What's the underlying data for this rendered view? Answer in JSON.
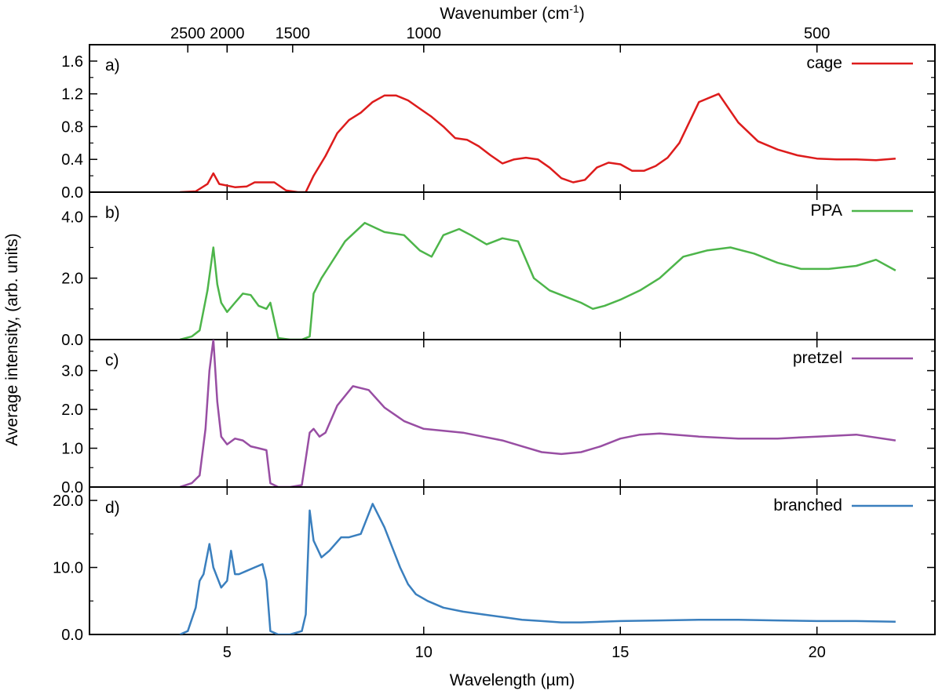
{
  "chart_data": {
    "type": "line",
    "xlabel": "Wavelength (µm)",
    "ylabel": "Average intensity, (arb. units)",
    "top_axis_label": "Wavenumber (cm",
    "top_axis_label_sup": "-1",
    "top_axis_label_close": ")",
    "xlim": [
      1.5,
      23
    ],
    "x_ticks": [
      5,
      10,
      15,
      20
    ],
    "x_tick_labels": [
      "5",
      "10",
      "15",
      "20"
    ],
    "top_ticks": [
      2500,
      2000,
      1500,
      1000,
      500
    ],
    "top_tick_labels": [
      "2500",
      "2000",
      "1500",
      "1000",
      "500"
    ],
    "panels": [
      {
        "panel_label": "a)",
        "legend": "cage",
        "color": "#dd1c1c",
        "ylim": [
          0,
          1.8
        ],
        "y_ticks": [
          0.0,
          0.4,
          0.8,
          1.2,
          1.6
        ],
        "y_tick_labels": [
          "0.0",
          "0.4",
          "0.8",
          "1.2",
          "1.6"
        ],
        "x": [
          3.8,
          4.2,
          4.5,
          4.65,
          4.8,
          5.2,
          5.5,
          5.7,
          5.9,
          6.2,
          6.5,
          6.8,
          7.0,
          7.2,
          7.5,
          7.8,
          8.1,
          8.4,
          8.7,
          9.0,
          9.3,
          9.6,
          9.9,
          10.2,
          10.5,
          10.8,
          11.1,
          11.4,
          11.7,
          12.0,
          12.3,
          12.6,
          12.9,
          13.2,
          13.5,
          13.8,
          14.1,
          14.4,
          14.7,
          15.0,
          15.3,
          15.6,
          15.9,
          16.2,
          16.5,
          17.0,
          17.5,
          18.0,
          18.5,
          19.0,
          19.5,
          20.0,
          20.5,
          21.0,
          21.5,
          22.0
        ],
        "y": [
          0.0,
          0.01,
          0.1,
          0.23,
          0.1,
          0.06,
          0.07,
          0.12,
          0.12,
          0.12,
          0.02,
          0.0,
          0.0,
          0.2,
          0.44,
          0.72,
          0.88,
          0.97,
          1.1,
          1.18,
          1.18,
          1.12,
          1.02,
          0.92,
          0.8,
          0.66,
          0.64,
          0.56,
          0.45,
          0.35,
          0.4,
          0.42,
          0.4,
          0.3,
          0.17,
          0.12,
          0.15,
          0.3,
          0.36,
          0.34,
          0.26,
          0.26,
          0.32,
          0.42,
          0.6,
          1.1,
          1.2,
          0.85,
          0.62,
          0.52,
          0.45,
          0.41,
          0.4,
          0.4,
          0.39,
          0.41
        ]
      },
      {
        "panel_label": "b)",
        "legend": "PPA",
        "color": "#4db54a",
        "ylim": [
          0,
          4.8
        ],
        "y_ticks": [
          0.0,
          2.0,
          4.0
        ],
        "y_tick_labels": [
          "0.0",
          "2.0",
          "4.0"
        ],
        "x": [
          3.8,
          4.1,
          4.3,
          4.5,
          4.65,
          4.75,
          4.85,
          5.0,
          5.2,
          5.4,
          5.6,
          5.8,
          6.0,
          6.1,
          6.3,
          6.6,
          6.9,
          7.1,
          7.2,
          7.4,
          7.6,
          8.0,
          8.5,
          9.0,
          9.5,
          9.9,
          10.2,
          10.5,
          10.9,
          11.2,
          11.6,
          12.0,
          12.4,
          12.8,
          13.2,
          13.6,
          14.0,
          14.3,
          14.6,
          15.0,
          15.5,
          16.0,
          16.6,
          17.2,
          17.8,
          18.4,
          19.0,
          19.6,
          20.3,
          21.0,
          21.5,
          22.0
        ],
        "y": [
          0.0,
          0.1,
          0.3,
          1.6,
          3.0,
          1.8,
          1.2,
          0.9,
          1.2,
          1.5,
          1.45,
          1.1,
          1.0,
          1.2,
          0.05,
          0.0,
          0.0,
          0.1,
          1.5,
          2.0,
          2.4,
          3.2,
          3.8,
          3.5,
          3.4,
          2.9,
          2.7,
          3.4,
          3.6,
          3.4,
          3.1,
          3.3,
          3.2,
          2.0,
          1.6,
          1.4,
          1.2,
          1.0,
          1.1,
          1.3,
          1.6,
          2.0,
          2.7,
          2.9,
          3.0,
          2.8,
          2.5,
          2.3,
          2.3,
          2.4,
          2.6,
          2.25
        ]
      },
      {
        "panel_label": "c)",
        "legend": "pretzel",
        "color": "#984ea3",
        "ylim": [
          0,
          3.8
        ],
        "y_ticks": [
          0.0,
          1.0,
          2.0,
          3.0
        ],
        "y_tick_labels": [
          "0.0",
          "1.0",
          "2.0",
          "3.0"
        ],
        "x": [
          3.8,
          4.1,
          4.3,
          4.45,
          4.55,
          4.65,
          4.75,
          4.85,
          5.0,
          5.2,
          5.4,
          5.6,
          5.8,
          6.0,
          6.1,
          6.3,
          6.6,
          6.9,
          7.1,
          7.2,
          7.35,
          7.5,
          7.8,
          8.2,
          8.6,
          9.0,
          9.5,
          10.0,
          10.5,
          11.0,
          11.5,
          12.0,
          12.5,
          13.0,
          13.5,
          14.0,
          14.5,
          15.0,
          15.5,
          16.0,
          17.0,
          18.0,
          19.0,
          20.0,
          21.0,
          22.0
        ],
        "y": [
          0.0,
          0.1,
          0.3,
          1.5,
          3.0,
          3.8,
          2.2,
          1.3,
          1.1,
          1.25,
          1.2,
          1.05,
          1.0,
          0.95,
          0.1,
          0.0,
          0.0,
          0.05,
          1.4,
          1.5,
          1.3,
          1.4,
          2.1,
          2.6,
          2.5,
          2.05,
          1.7,
          1.5,
          1.45,
          1.4,
          1.3,
          1.2,
          1.05,
          0.9,
          0.85,
          0.9,
          1.05,
          1.25,
          1.35,
          1.38,
          1.3,
          1.25,
          1.25,
          1.3,
          1.35,
          1.2
        ]
      },
      {
        "panel_label": "d)",
        "legend": "branched",
        "color": "#3a7fbe",
        "ylim": [
          0,
          22
        ],
        "y_ticks": [
          0.0,
          10.0,
          20.0
        ],
        "y_tick_labels": [
          "0.0",
          "10.0",
          "20.0"
        ],
        "x": [
          3.8,
          4.0,
          4.2,
          4.3,
          4.4,
          4.55,
          4.65,
          4.75,
          4.85,
          5.0,
          5.1,
          5.2,
          5.3,
          5.5,
          5.7,
          5.9,
          6.0,
          6.1,
          6.3,
          6.6,
          6.9,
          7.0,
          7.1,
          7.2,
          7.4,
          7.6,
          7.9,
          8.1,
          8.4,
          8.7,
          9.0,
          9.2,
          9.4,
          9.6,
          9.8,
          10.1,
          10.5,
          11.0,
          11.5,
          12.0,
          12.5,
          13.0,
          13.5,
          14.0,
          14.5,
          15.0,
          16.0,
          17.0,
          18.0,
          19.0,
          20.0,
          21.0,
          22.0
        ],
        "y": [
          0.0,
          0.5,
          4.0,
          8.0,
          9.0,
          13.5,
          10.0,
          8.5,
          7.0,
          8.0,
          12.5,
          9.0,
          9.0,
          9.5,
          10.0,
          10.5,
          8.0,
          0.5,
          0.0,
          0.0,
          0.5,
          3.0,
          18.5,
          14.0,
          11.5,
          12.5,
          14.5,
          14.5,
          15.0,
          19.5,
          16.0,
          13.0,
          10.0,
          7.5,
          6.0,
          5.0,
          4.0,
          3.4,
          3.0,
          2.6,
          2.2,
          2.0,
          1.8,
          1.8,
          1.9,
          2.0,
          2.1,
          2.2,
          2.2,
          2.1,
          2.0,
          2.0,
          1.9
        ]
      }
    ]
  }
}
